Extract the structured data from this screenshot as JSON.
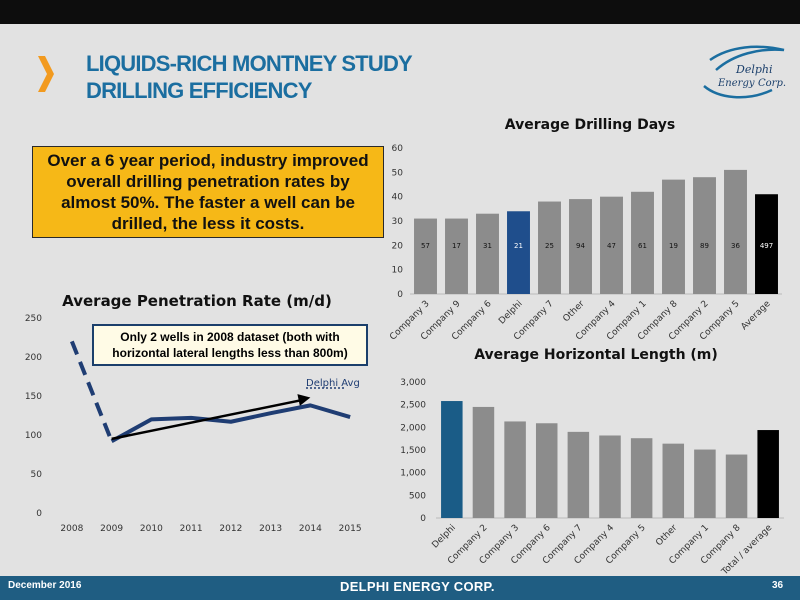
{
  "header": {
    "title_line1": "LIQUIDS-RICH MONTNEY STUDY",
    "title_line2": "DRILLING EFFICIENCY",
    "logo_text": "Delphi Energy Corp."
  },
  "callout": {
    "text": "Over a 6 year period, industry improved overall drilling penetration rates by almost 50%. The faster a well can be drilled, the less it costs."
  },
  "note": {
    "text": "Only 2 wells in 2008 dataset (both with horizontal lateral lengths less than 800m)"
  },
  "colors": {
    "title_blue": "#1b6ea0",
    "delphi_bar": "#1f4e8c",
    "delphi_bar_2": "#1a5c87",
    "grey_bar": "#8c8c8c",
    "average_bar": "#000000",
    "line": "#1f3d73",
    "callout": "#f6b817",
    "chevron": "#f29a1f"
  },
  "chart_data": [
    {
      "id": "drilling_days",
      "type": "bar",
      "title": "Average Drilling Days",
      "categories": [
        "Company 3",
        "Company 9",
        "Company 6",
        "Delphi",
        "Company 7",
        "Other",
        "Company 4",
        "Company 1",
        "Company 8",
        "Company 2",
        "Company 5",
        "Average"
      ],
      "values": [
        31,
        31,
        33,
        34,
        38,
        39,
        40,
        42,
        47,
        48,
        51,
        41
      ],
      "data_labels": [
        "57",
        "17",
        "31",
        "21",
        "25",
        "94",
        "47",
        "61",
        "19",
        "89",
        "36",
        "497"
      ],
      "highlight": {
        "Delphi": "#1f4e8c",
        "Average": "#000000"
      },
      "ylim": [
        0,
        60
      ],
      "yticks": [
        0,
        10,
        20,
        30,
        40,
        50,
        60
      ],
      "grid": false
    },
    {
      "id": "horizontal_length",
      "type": "bar",
      "title": "Average Horizontal Length (m)",
      "categories": [
        "Delphi",
        "Company 2",
        "Company 3",
        "Company 6",
        "Company 7",
        "Company 4",
        "Company 5",
        "Other",
        "Company 1",
        "Company 8",
        "Total / average"
      ],
      "values": [
        2580,
        2450,
        2130,
        2090,
        1900,
        1820,
        1760,
        1640,
        1510,
        1400,
        1940
      ],
      "highlight": {
        "Delphi": "#1a5c87",
        "Total / average": "#000000"
      },
      "ylim": [
        0,
        3000
      ],
      "yticks": [
        "0",
        "500",
        "1,000",
        "1,500",
        "2,000",
        "2,500",
        "3,000"
      ],
      "grid": false
    },
    {
      "id": "penetration_rate",
      "type": "line",
      "title": "Average Penetration Rate (m/d)",
      "x": [
        "2008",
        "2009",
        "2010",
        "2011",
        "2012",
        "2013",
        "2014",
        "2015"
      ],
      "series": [
        {
          "values": [
            220,
            92,
            120,
            122,
            117,
            128,
            138,
            123
          ]
        }
      ],
      "dashed_segment": [
        "2008",
        "2009"
      ],
      "trend_arrow": {
        "from": [
          "2009",
          95
        ],
        "to": [
          "2014",
          148
        ]
      },
      "annotation": "Delphi Avg",
      "ylim": [
        0,
        250
      ],
      "yticks": [
        0,
        50,
        100,
        150,
        200,
        250
      ],
      "grid": false
    }
  ],
  "footer": {
    "date": "December 2016",
    "brand": "DELPHI ENERGY CORP.",
    "page": "36"
  }
}
